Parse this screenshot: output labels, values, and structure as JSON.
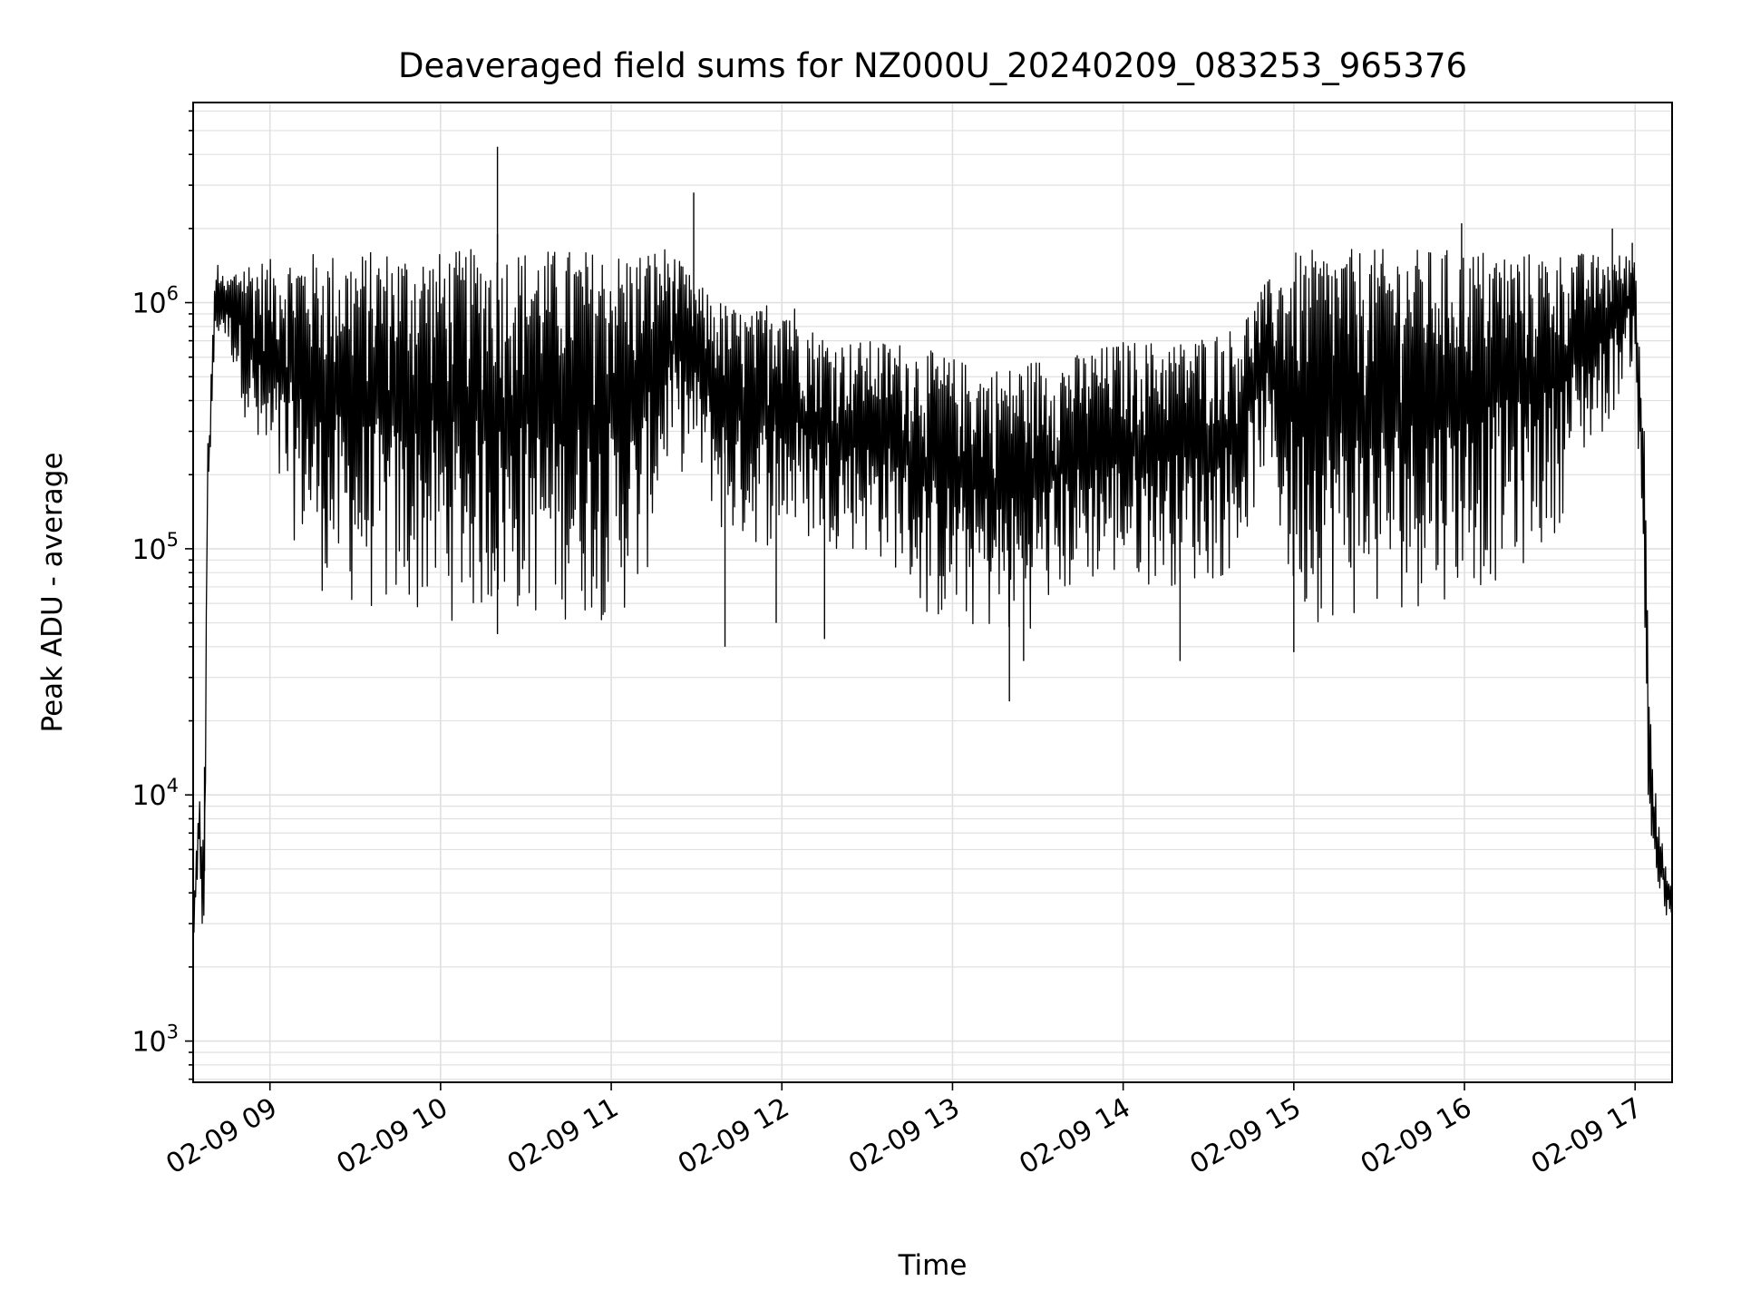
{
  "chart_data": {
    "type": "line",
    "title": "Deaveraged field sums for NZ000U_20240209_083253_965376",
    "xlabel": "Time",
    "ylabel": "Peak ADU - average",
    "yscale": "log",
    "ylim": [
      680,
      6500000
    ],
    "xlim": [
      "2024-02-09 08:33",
      "2024-02-09 17:13"
    ],
    "grid": true,
    "line_color": "#000000",
    "grid_color": "#e0e0e0",
    "x_ticks": [
      {
        "t": "2024-02-09 09:00",
        "label": "02-09 09"
      },
      {
        "t": "2024-02-09 10:00",
        "label": "02-09 10"
      },
      {
        "t": "2024-02-09 11:00",
        "label": "02-09 11"
      },
      {
        "t": "2024-02-09 12:00",
        "label": "02-09 12"
      },
      {
        "t": "2024-02-09 13:00",
        "label": "02-09 13"
      },
      {
        "t": "2024-02-09 14:00",
        "label": "02-09 14"
      },
      {
        "t": "2024-02-09 15:00",
        "label": "02-09 15"
      },
      {
        "t": "2024-02-09 16:00",
        "label": "02-09 16"
      },
      {
        "t": "2024-02-09 17:00",
        "label": "02-09 17"
      }
    ],
    "y_ticks": [
      {
        "value": 1000,
        "base": "10",
        "exp": "3"
      },
      {
        "value": 10000,
        "base": "10",
        "exp": "4"
      },
      {
        "value": 100000,
        "base": "10",
        "exp": "5"
      },
      {
        "value": 1000000,
        "base": "10",
        "exp": "6"
      }
    ],
    "series": [
      {
        "x": [
          "2024-02-09 08:33",
          "2024-02-09 08:34",
          "2024-02-09 08:35",
          "2024-02-09 08:36",
          "2024-02-09 08:37",
          "2024-02-09 08:38",
          "2024-02-09 08:39",
          "2024-02-09 08:40",
          "2024-02-09 08:41",
          "2024-02-09 08:42",
          "2024-02-09 08:44",
          "2024-02-09 08:46",
          "2024-02-09 08:50",
          "2024-02-09 08:55",
          "2024-02-09 09:00",
          "2024-02-09 09:10",
          "2024-02-09 09:20",
          "2024-02-09 09:30",
          "2024-02-09 09:40",
          "2024-02-09 09:50",
          "2024-02-09 10:00",
          "2024-02-09 10:10",
          "2024-02-09 10:20",
          "2024-02-09 10:30",
          "2024-02-09 10:40",
          "2024-02-09 10:50",
          "2024-02-09 11:00",
          "2024-02-09 11:10",
          "2024-02-09 11:20",
          "2024-02-09 11:30",
          "2024-02-09 11:40",
          "2024-02-09 11:50",
          "2024-02-09 12:00",
          "2024-02-09 12:10",
          "2024-02-09 12:20",
          "2024-02-09 12:30",
          "2024-02-09 12:40",
          "2024-02-09 12:50",
          "2024-02-09 13:00",
          "2024-02-09 13:10",
          "2024-02-09 13:20",
          "2024-02-09 13:30",
          "2024-02-09 13:40",
          "2024-02-09 13:50",
          "2024-02-09 14:00",
          "2024-02-09 14:10",
          "2024-02-09 14:20",
          "2024-02-09 14:30",
          "2024-02-09 14:40",
          "2024-02-09 14:50",
          "2024-02-09 15:00",
          "2024-02-09 15:10",
          "2024-02-09 15:20",
          "2024-02-09 15:30",
          "2024-02-09 15:40",
          "2024-02-09 15:50",
          "2024-02-09 16:00",
          "2024-02-09 16:10",
          "2024-02-09 16:20",
          "2024-02-09 16:30",
          "2024-02-09 16:40",
          "2024-02-09 16:50",
          "2024-02-09 17:00",
          "2024-02-09 17:03",
          "2024-02-09 17:05",
          "2024-02-09 17:07",
          "2024-02-09 17:09",
          "2024-02-09 17:11",
          "2024-02-09 17:13"
        ],
        "upper": [
          3000,
          5500,
          13000,
          6000,
          8000,
          250000,
          400000,
          900000,
          1400000,
          1500000,
          1200000,
          1300000,
          1500000,
          1500000,
          1500000,
          1600000,
          1600000,
          1600000,
          1650000,
          1650000,
          1600000,
          1650000,
          1650000,
          1650000,
          1650000,
          1650000,
          1600000,
          1650000,
          1700000,
          1200000,
          1000000,
          900000,
          1200000,
          800000,
          700000,
          700000,
          700000,
          650000,
          600000,
          550000,
          550000,
          600000,
          600000,
          650000,
          700000,
          700000,
          700000,
          750000,
          800000,
          1200000,
          1600000,
          1650000,
          1650000,
          1650000,
          1650000,
          1650000,
          1650000,
          1650000,
          1600000,
          1600000,
          1600000,
          1550000,
          1600000,
          400000,
          40000,
          12000,
          7000,
          5000,
          4000
        ],
        "lower": [
          2500,
          2800,
          3500,
          2300,
          3000,
          100000,
          200000,
          450000,
          600000,
          700000,
          700000,
          600000,
          400000,
          200000,
          150000,
          100000,
          60000,
          55000,
          50000,
          50000,
          50000,
          50000,
          50000,
          50000,
          50000,
          50000,
          50000,
          55000,
          200000,
          200000,
          100000,
          100000,
          100000,
          100000,
          100000,
          90000,
          80000,
          50000,
          45000,
          45000,
          40000,
          50000,
          60000,
          70000,
          70000,
          70000,
          70000,
          70000,
          80000,
          200000,
          50000,
          50000,
          50000,
          50000,
          55000,
          60000,
          65000,
          70000,
          80000,
          100000,
          200000,
          300000,
          600000,
          40000,
          5000,
          4000,
          3500,
          3000,
          2800
        ],
        "spikes": [
          {
            "x": "2024-02-09 08:37",
            "y": 13000
          },
          {
            "x": "2024-02-09 10:20",
            "y": 1900000
          },
          {
            "x": "2024-02-09 10:20",
            "y": 45000
          },
          {
            "x": "2024-02-09 10:20",
            "y": 4300000
          },
          {
            "x": "2024-02-09 11:29",
            "y": 2800000
          },
          {
            "x": "2024-02-09 11:40",
            "y": 40000
          },
          {
            "x": "2024-02-09 11:58",
            "y": 50000
          },
          {
            "x": "2024-02-09 12:15",
            "y": 43000
          },
          {
            "x": "2024-02-09 13:20",
            "y": 24000
          },
          {
            "x": "2024-02-09 13:25",
            "y": 35000
          },
          {
            "x": "2024-02-09 14:20",
            "y": 35000
          },
          {
            "x": "2024-02-09 15:00",
            "y": 38000
          },
          {
            "x": "2024-02-09 15:59",
            "y": 2100000
          },
          {
            "x": "2024-02-09 16:52",
            "y": 2000000
          },
          {
            "x": "2024-02-09 16:59",
            "y": 1750000
          }
        ]
      }
    ]
  }
}
